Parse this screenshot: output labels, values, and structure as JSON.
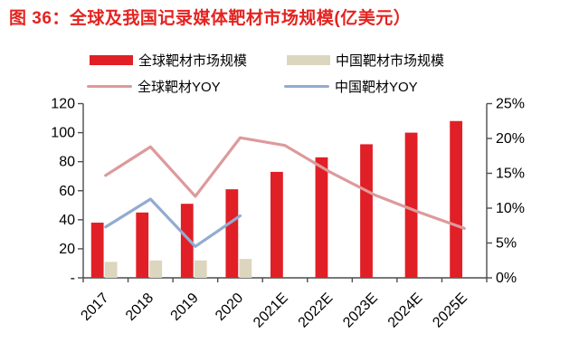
{
  "title": "图 36：全球及我国记录媒体靶材市场规模(亿美元）",
  "colors": {
    "title": "#e42320",
    "bar_global": "#e11f26",
    "bar_china": "#ddd6be",
    "line_global": "#dd9a9c",
    "line_china": "#93abd1",
    "axis": "#4d4d4d",
    "text": "#000000"
  },
  "legend": {
    "items": [
      {
        "label": "全球靶材市场规模",
        "type": "bar",
        "color_key": "bar_global"
      },
      {
        "label": "中国靶材市场规模",
        "type": "bar",
        "color_key": "bar_china"
      },
      {
        "label": "全球靶材YOY",
        "type": "line",
        "color_key": "line_global"
      },
      {
        "label": "中国靶材YOY",
        "type": "line",
        "color_key": "line_china"
      }
    ]
  },
  "chart_data": {
    "type": "bar",
    "subtype": "bar-line-combo",
    "title": "图 36：全球及我国记录媒体靶材市场规模(亿美元）",
    "categories": [
      "2017",
      "2018",
      "2019",
      "2020",
      "2021E",
      "2022E",
      "2023E",
      "2024E",
      "2025E"
    ],
    "series": [
      {
        "name": "全球靶材市场规模",
        "type": "bar",
        "axis": "left",
        "color_key": "bar_global",
        "values": [
          38,
          45,
          51,
          61,
          73,
          83,
          92,
          100,
          108
        ]
      },
      {
        "name": "中国靶材市场规模",
        "type": "bar",
        "axis": "left",
        "color_key": "bar_china",
        "values": [
          11,
          12,
          12,
          13,
          null,
          null,
          null,
          null,
          null
        ]
      },
      {
        "name": "全球靶材YOY",
        "type": "line",
        "axis": "right",
        "color_key": "line_global",
        "values": [
          14.7,
          18.8,
          11.7,
          20.1,
          19.0,
          15.2,
          11.9,
          9.4,
          7.1
        ]
      },
      {
        "name": "中国靶材YOY",
        "type": "line",
        "axis": "right",
        "color_key": "line_china",
        "values": [
          7.3,
          11.3,
          4.5,
          8.9,
          null,
          null,
          null,
          null,
          null
        ]
      }
    ],
    "left_axis": {
      "min": 0,
      "max": 120,
      "step": 20,
      "labels_bottom_up": [
        "-",
        "20",
        "40",
        "60",
        "80",
        "100",
        "120"
      ]
    },
    "right_axis": {
      "min": 0,
      "max": 25,
      "step": 5,
      "labels_bottom_up": [
        "0%",
        "5%",
        "10%",
        "15%",
        "20%",
        "25%"
      ]
    },
    "grid": false,
    "legend_position": "top"
  }
}
